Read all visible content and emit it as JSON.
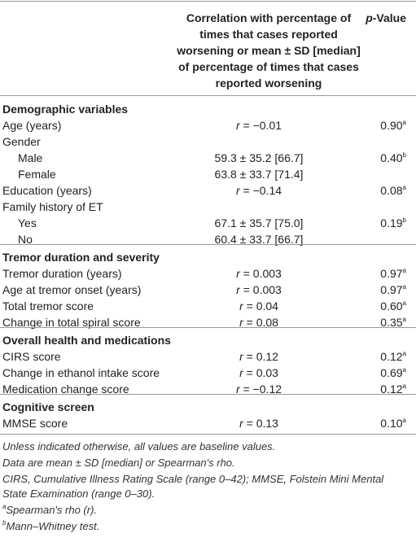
{
  "table": {
    "columns": [
      "",
      "Correlation with percentage of times that cases reported worsening or mean ± SD [median] of percentage of times that cases reported worsening",
      "p-Value"
    ],
    "sections": [
      {
        "title": "Demographic variables",
        "rows": [
          {
            "label": "Age (years)",
            "corr": "r = −0.01",
            "p": {
              "value": "0.90",
              "note": "a"
            }
          },
          {
            "label": "Gender",
            "subrows": [
              {
                "label": "Male",
                "corr": "59.3 ± 35.2 [66.7]",
                "p": {
                  "value": "0.40",
                  "note": "b"
                }
              },
              {
                "label": "Female",
                "corr": "63.8 ± 33.7 [71.4]"
              }
            ]
          },
          {
            "label": "Education (years)",
            "corr": "r = −0.14",
            "p": {
              "value": "0.08",
              "note": "a"
            }
          },
          {
            "label": "Family history of ET",
            "subrows": [
              {
                "label": "Yes",
                "corr": "67.1 ± 35.7 [75.0]",
                "p": {
                  "value": "0.19",
                  "note": "b"
                }
              },
              {
                "label": "No",
                "corr": "60.4 ± 33.7 [66.7]"
              }
            ]
          }
        ]
      },
      {
        "title": "Tremor duration and severity",
        "rows": [
          {
            "label": "Tremor duration (years)",
            "corr": "r = 0.003",
            "p": {
              "value": "0.97",
              "note": "a"
            }
          },
          {
            "label": "Age at tremor onset (years)",
            "corr": "r = 0.003",
            "p": {
              "value": "0.97",
              "note": "a"
            }
          },
          {
            "label": "Total tremor score",
            "corr": "r = 0.04",
            "p": {
              "value": "0.60",
              "note": "a"
            }
          },
          {
            "label": "Change in total spiral score",
            "corr": "r = 0.08",
            "p": {
              "value": "0.35",
              "note": "a"
            }
          }
        ]
      },
      {
        "title": "Overall health and medications",
        "rows": [
          {
            "label": "CIRS score",
            "corr": "r = 0.12",
            "p": {
              "value": "0.12",
              "note": "a"
            }
          },
          {
            "label": "Change in ethanol intake score",
            "corr": "r = 0.03",
            "p": {
              "value": "0.69",
              "note": "a"
            }
          },
          {
            "label": "Medication change score",
            "corr": "r = −0.12",
            "p": {
              "value": "0.12",
              "note": "a"
            }
          }
        ]
      },
      {
        "title": "Cognitive screen",
        "rows": [
          {
            "label": "MMSE score",
            "corr": "r = 0.13",
            "p": {
              "value": "0.10",
              "note": "a"
            }
          }
        ]
      }
    ],
    "footnotes": [
      "Unless indicated otherwise, all values are baseline values.",
      "Data are mean ± SD [median] or Spearman's rho.",
      "CIRS, Cumulative Illness Rating Scale (range 0–42); MMSE, Folstein Mini Mental State Examination (range 0–30)."
    ],
    "notes": [
      {
        "marker": "a",
        "text": "Spearman's rho (r)."
      },
      {
        "marker": "b",
        "text": "Mann–Whitney test."
      }
    ]
  }
}
